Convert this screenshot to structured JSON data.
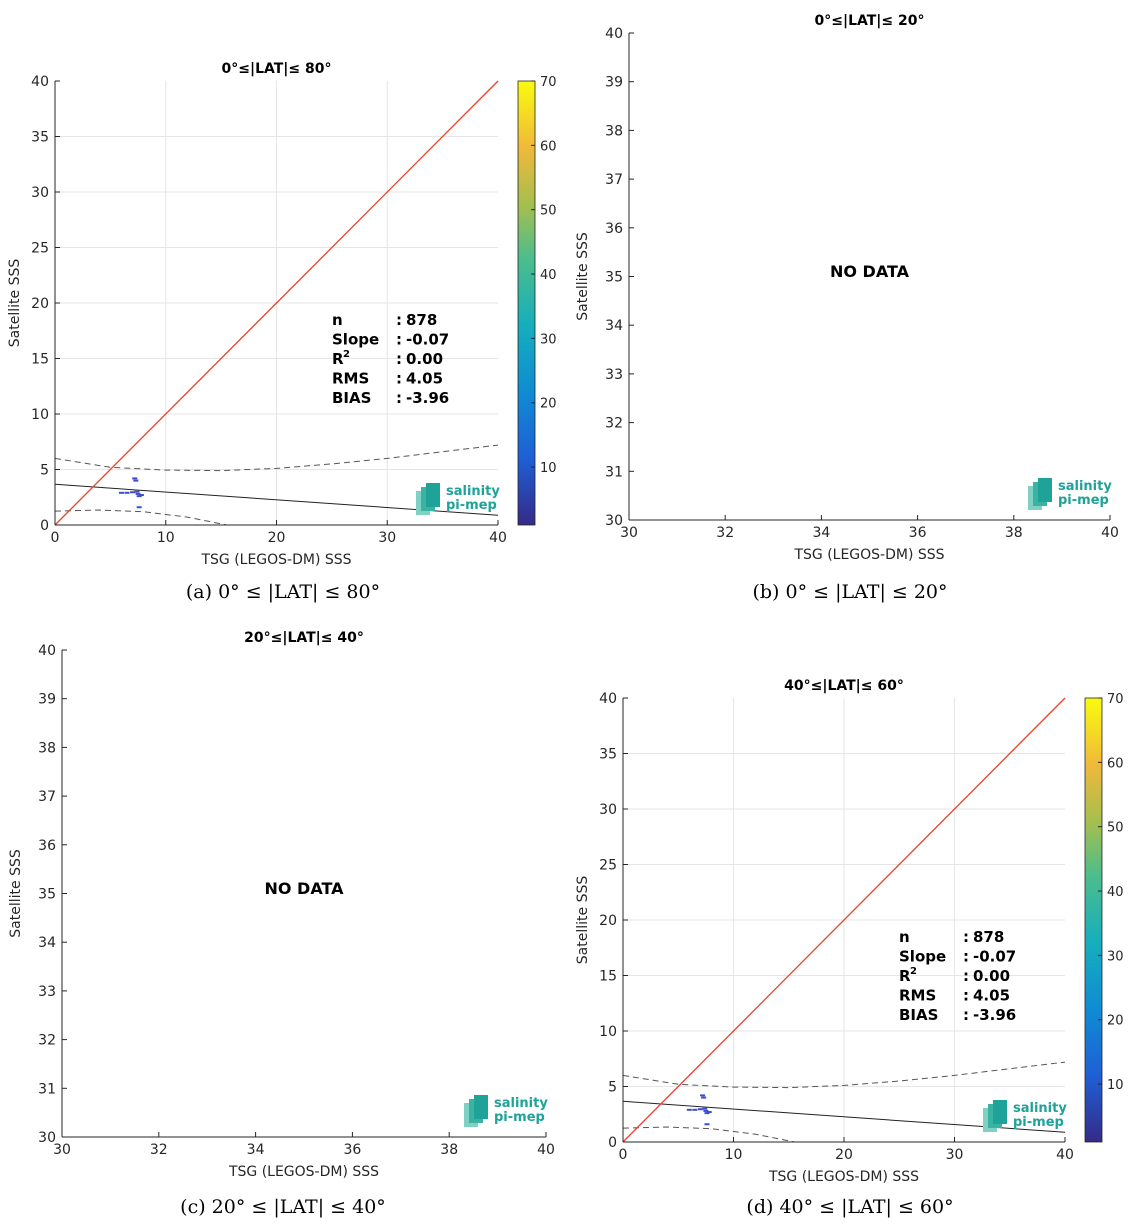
{
  "panels": [
    {
      "id": "a",
      "title": "0°≤|LAT|≤ 80°",
      "caption": "(a) 0° ≤ |LAT| ≤ 80°",
      "xlabel": "TSG (LEGOS-DM) SSS",
      "ylabel": "Satellite SSS",
      "has_data": true,
      "no_data_text": "",
      "logo": {
        "line1": "salinity",
        "line2": "pi-mep"
      },
      "stats": [
        {
          "label": "n",
          "sep": ":",
          "value": "878"
        },
        {
          "label": "Slope",
          "sep": ":",
          "value": "-0.07"
        },
        {
          "label": "R",
          "sup": "2",
          "sep": ":",
          "value": "0.00"
        },
        {
          "label": "RMS",
          "sep": ":",
          "value": "4.05"
        },
        {
          "label": "BIAS",
          "sep": ":",
          "value": "-3.96"
        }
      ]
    },
    {
      "id": "b",
      "title": "0°≤|LAT|≤ 20°",
      "caption": "(b) 0° ≤ |LAT| ≤ 20°",
      "xlabel": "TSG (LEGOS-DM) SSS",
      "ylabel": "Satellite SSS",
      "has_data": false,
      "no_data_text": "NO DATA",
      "logo": {
        "line1": "salinity",
        "line2": "pi-mep"
      },
      "stats": []
    },
    {
      "id": "c",
      "title": "20°≤|LAT|≤ 40°",
      "caption": "(c) 20° ≤ |LAT| ≤ 40°",
      "xlabel": "TSG (LEGOS-DM) SSS",
      "ylabel": "Satellite SSS",
      "has_data": false,
      "no_data_text": "NO DATA",
      "logo": {
        "line1": "salinity",
        "line2": "pi-mep"
      },
      "stats": []
    },
    {
      "id": "d",
      "title": "40°≤|LAT|≤ 60°",
      "caption": "(d) 40° ≤ |LAT| ≤ 60°",
      "xlabel": "TSG (LEGOS-DM) SSS",
      "ylabel": "Satellite SSS",
      "has_data": true,
      "no_data_text": "",
      "logo": {
        "line1": "salinity",
        "line2": "pi-mep"
      },
      "stats": [
        {
          "label": "n",
          "sep": ":",
          "value": "878"
        },
        {
          "label": "Slope",
          "sep": ":",
          "value": "-0.07"
        },
        {
          "label": "R",
          "sup": "2",
          "sep": ":",
          "value": "0.00"
        },
        {
          "label": "RMS",
          "sep": ":",
          "value": "4.05"
        },
        {
          "label": "BIAS",
          "sep": ":",
          "value": "-3.96"
        }
      ]
    }
  ],
  "colors": {
    "identity_line": "#e8412c",
    "fit_line": "#222222",
    "envelope": "#555555",
    "grid": "#e6e6e6",
    "axis": "#262626",
    "points": "#3a4fd0",
    "logo": "#1fa398"
  },
  "chart_data": [
    {
      "panel": "a",
      "type": "scatter",
      "title": "0°≤|LAT|≤ 80°",
      "xlabel": "TSG (LEGOS-DM) SSS",
      "ylabel": "Satellite SSS",
      "xlim": [
        0,
        40
      ],
      "ylim": [
        0,
        40
      ],
      "xticks": [
        0,
        10,
        20,
        30,
        40
      ],
      "yticks": [
        0,
        5,
        10,
        15,
        20,
        25,
        30,
        35,
        40
      ],
      "grid": true,
      "colorbar": {
        "ticks": [
          10,
          20,
          30,
          40,
          50,
          60,
          70
        ],
        "range": [
          1,
          70
        ]
      },
      "identity_line": [
        [
          0,
          0
        ],
        [
          40,
          40
        ]
      ],
      "fit_line": [
        [
          0,
          3.67
        ],
        [
          40,
          0.87
        ]
      ],
      "upper_envelope": [
        [
          0,
          6.0
        ],
        [
          5,
          5.2
        ],
        [
          10,
          4.95
        ],
        [
          15,
          4.9
        ],
        [
          20,
          5.1
        ],
        [
          25,
          5.5
        ],
        [
          30,
          6.0
        ],
        [
          35,
          6.6
        ],
        [
          40,
          7.2
        ]
      ],
      "lower_envelope": [
        [
          0,
          1.25
        ],
        [
          4,
          1.35
        ],
        [
          8,
          1.2
        ],
        [
          12,
          0.7
        ],
        [
          15.5,
          0.0
        ]
      ],
      "points": [
        [
          6,
          2.9
        ],
        [
          6.5,
          2.9
        ],
        [
          7,
          2.95
        ],
        [
          7.2,
          4.2
        ],
        [
          7.3,
          4.0
        ],
        [
          7.4,
          3.0
        ],
        [
          7.5,
          2.8
        ],
        [
          7.6,
          2.6
        ],
        [
          7.8,
          2.7
        ],
        [
          7.6,
          1.6
        ]
      ]
    },
    {
      "panel": "b",
      "type": "scatter",
      "title": "0°≤|LAT|≤ 20°",
      "xlabel": "TSG (LEGOS-DM) SSS",
      "ylabel": "Satellite SSS",
      "xlim": [
        30,
        40
      ],
      "ylim": [
        30,
        40
      ],
      "xticks": [
        30,
        32,
        34,
        36,
        38,
        40
      ],
      "yticks": [
        30,
        31,
        32,
        33,
        34,
        35,
        36,
        37,
        38,
        39,
        40
      ],
      "grid": false,
      "points": []
    },
    {
      "panel": "c",
      "type": "scatter",
      "title": "20°≤|LAT|≤ 40°",
      "xlabel": "TSG (LEGOS-DM) SSS",
      "ylabel": "Satellite SSS",
      "xlim": [
        30,
        40
      ],
      "ylim": [
        30,
        40
      ],
      "xticks": [
        30,
        32,
        34,
        36,
        38,
        40
      ],
      "yticks": [
        30,
        31,
        32,
        33,
        34,
        35,
        36,
        37,
        38,
        39,
        40
      ],
      "grid": false,
      "points": []
    },
    {
      "panel": "d",
      "type": "scatter",
      "title": "40°≤|LAT|≤ 60°",
      "xlabel": "TSG (LEGOS-DM) SSS",
      "ylabel": "Satellite SSS",
      "xlim": [
        0,
        40
      ],
      "ylim": [
        0,
        40
      ],
      "xticks": [
        0,
        10,
        20,
        30,
        40
      ],
      "yticks": [
        0,
        5,
        10,
        15,
        20,
        25,
        30,
        35,
        40
      ],
      "grid": true,
      "colorbar": {
        "ticks": [
          10,
          20,
          30,
          40,
          50,
          60,
          70
        ],
        "range": [
          1,
          70
        ]
      },
      "identity_line": [
        [
          0,
          0
        ],
        [
          40,
          40
        ]
      ],
      "fit_line": [
        [
          0,
          3.67
        ],
        [
          40,
          0.87
        ]
      ],
      "upper_envelope": [
        [
          0,
          6.0
        ],
        [
          5,
          5.2
        ],
        [
          10,
          4.95
        ],
        [
          15,
          4.9
        ],
        [
          20,
          5.1
        ],
        [
          25,
          5.5
        ],
        [
          30,
          6.0
        ],
        [
          35,
          6.6
        ],
        [
          40,
          7.2
        ]
      ],
      "lower_envelope": [
        [
          0,
          1.25
        ],
        [
          4,
          1.35
        ],
        [
          8,
          1.2
        ],
        [
          12,
          0.7
        ],
        [
          15.5,
          0.0
        ]
      ],
      "points": [
        [
          6,
          2.9
        ],
        [
          6.5,
          2.9
        ],
        [
          7,
          2.95
        ],
        [
          7.2,
          4.2
        ],
        [
          7.3,
          4.0
        ],
        [
          7.4,
          3.0
        ],
        [
          7.5,
          2.8
        ],
        [
          7.6,
          2.6
        ],
        [
          7.8,
          2.7
        ],
        [
          7.6,
          1.6
        ]
      ]
    }
  ]
}
